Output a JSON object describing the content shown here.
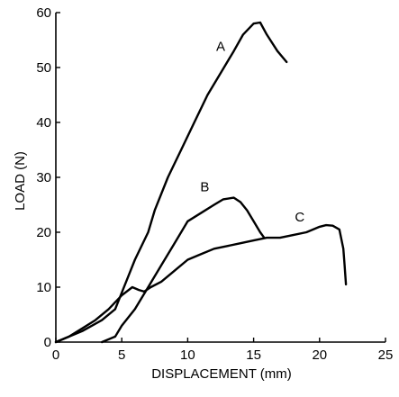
{
  "chart_data": {
    "type": "line",
    "xlabel": "DISPLACEMENT (mm)",
    "ylabel": "LOAD (N)",
    "xlim": [
      0,
      25
    ],
    "ylim": [
      0,
      60
    ],
    "x_ticks": [
      0,
      5,
      10,
      15,
      20,
      25
    ],
    "y_ticks": [
      0,
      10,
      20,
      30,
      40,
      50,
      60
    ],
    "grid": false,
    "legend": "none",
    "series": [
      {
        "name": "A",
        "label_at": [
          12.5,
          53
        ],
        "points": [
          [
            0,
            0
          ],
          [
            2,
            2
          ],
          [
            3.5,
            4
          ],
          [
            4.5,
            6
          ],
          [
            5,
            9
          ],
          [
            5.5,
            12
          ],
          [
            6,
            15
          ],
          [
            7,
            20
          ],
          [
            7.5,
            24
          ],
          [
            8.5,
            30
          ],
          [
            9.5,
            35
          ],
          [
            10.5,
            40
          ],
          [
            11.5,
            45
          ],
          [
            12.5,
            49
          ],
          [
            13.5,
            53
          ],
          [
            14.2,
            56
          ],
          [
            15,
            58
          ],
          [
            15.5,
            58.2
          ],
          [
            16,
            56
          ],
          [
            16.8,
            53
          ],
          [
            17.5,
            51
          ]
        ]
      },
      {
        "name": "B",
        "label_at": [
          11.3,
          27.5
        ],
        "points": [
          [
            3.5,
            0
          ],
          [
            4.5,
            1
          ],
          [
            5,
            3
          ],
          [
            6,
            6
          ],
          [
            7,
            10
          ],
          [
            8,
            14
          ],
          [
            9,
            18
          ],
          [
            10,
            22
          ],
          [
            11,
            23.5
          ],
          [
            12,
            25
          ],
          [
            12.7,
            26
          ],
          [
            13.5,
            26.3
          ],
          [
            14,
            25.5
          ],
          [
            14.5,
            24
          ],
          [
            15,
            22
          ],
          [
            15.5,
            20
          ],
          [
            15.8,
            19
          ]
        ]
      },
      {
        "name": "C",
        "label_at": [
          18.5,
          22
        ],
        "points": [
          [
            0,
            0
          ],
          [
            1,
            1
          ],
          [
            2,
            2.5
          ],
          [
            3,
            4
          ],
          [
            4,
            6
          ],
          [
            5,
            8.5
          ],
          [
            5.8,
            10
          ],
          [
            6.3,
            9.5
          ],
          [
            6.7,
            9.2
          ],
          [
            7.2,
            10
          ],
          [
            8,
            11
          ],
          [
            9,
            13
          ],
          [
            10,
            15
          ],
          [
            11,
            16
          ],
          [
            12,
            17
          ],
          [
            13,
            17.5
          ],
          [
            14,
            18
          ],
          [
            15,
            18.5
          ],
          [
            16,
            19
          ],
          [
            17,
            19
          ],
          [
            18,
            19.5
          ],
          [
            19,
            20
          ],
          [
            20,
            21
          ],
          [
            20.5,
            21.3
          ],
          [
            21,
            21.2
          ],
          [
            21.5,
            20.5
          ],
          [
            21.8,
            17
          ],
          [
            21.9,
            14
          ],
          [
            22,
            10.5
          ]
        ]
      }
    ]
  }
}
